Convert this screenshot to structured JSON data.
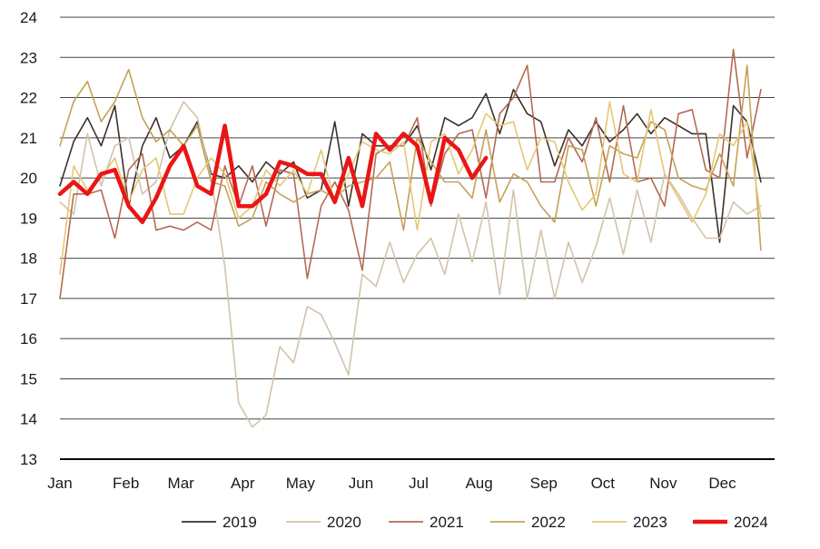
{
  "chart_data": {
    "type": "line",
    "title": "",
    "xlabel": "",
    "ylabel": "",
    "ylim": [
      13,
      24
    ],
    "yticks": [
      13,
      14,
      15,
      16,
      17,
      18,
      19,
      20,
      21,
      22,
      23,
      24
    ],
    "xlim": [
      1,
      53
    ],
    "x_ticks": [
      {
        "label": "Jan",
        "week": 1
      },
      {
        "label": "Feb",
        "week": 5.8
      },
      {
        "label": "Mar",
        "week": 9.8
      },
      {
        "label": "Apr",
        "week": 14.3
      },
      {
        "label": "May",
        "week": 18.5
      },
      {
        "label": "Jun",
        "week": 22.9
      },
      {
        "label": "Jul",
        "week": 27.1
      },
      {
        "label": "Aug",
        "week": 31.5
      },
      {
        "label": "Sep",
        "week": 36.2
      },
      {
        "label": "Oct",
        "week": 40.5
      },
      {
        "label": "Nov",
        "week": 44.9
      },
      {
        "label": "Dec",
        "week": 49.2
      }
    ],
    "grid": true,
    "legend_position": "bottom-right",
    "series": [
      {
        "name": "2019",
        "color": "#3d3129",
        "width": 1.6,
        "values": [
          19.8,
          20.9,
          21.5,
          20.8,
          21.8,
          19.3,
          20.8,
          21.5,
          20.5,
          20.8,
          21.4,
          20.1,
          20.0,
          20.3,
          19.9,
          20.4,
          20.1,
          20.4,
          19.5,
          19.7,
          21.4,
          19.3,
          21.1,
          20.8,
          20.8,
          20.8,
          21.3,
          20.2,
          21.5,
          21.3,
          21.5,
          22.1,
          21.1,
          22.2,
          21.6,
          21.4,
          20.3,
          21.2,
          20.8,
          21.4,
          20.9,
          21.2,
          21.6,
          21.1,
          21.5,
          21.3,
          21.1,
          21.1,
          18.4,
          21.8,
          21.4,
          19.9
        ]
      },
      {
        "name": "2020",
        "color": "#d2c3aa",
        "width": 1.6,
        "values": [
          19.4,
          19.1,
          21.1,
          19.8,
          20.8,
          21.0,
          19.6,
          19.9,
          21.2,
          21.9,
          21.5,
          20.0,
          17.8,
          14.4,
          13.8,
          14.1,
          15.8,
          15.4,
          16.8,
          16.6,
          15.9,
          15.1,
          17.6,
          17.3,
          18.4,
          17.4,
          18.1,
          18.5,
          17.6,
          19.1,
          17.9,
          19.4,
          17.1,
          19.7,
          17.0,
          18.7,
          17.0,
          18.4,
          17.4,
          18.3,
          19.5,
          18.1,
          19.7,
          18.4,
          20.1,
          19.6,
          19.0,
          18.5,
          18.5,
          19.4,
          19.1,
          19.3
        ]
      },
      {
        "name": "2021",
        "color": "#b56a53",
        "width": 1.6,
        "values": [
          17.0,
          19.6,
          19.6,
          19.7,
          18.5,
          20.2,
          20.6,
          18.7,
          18.8,
          18.7,
          18.9,
          18.7,
          20.3,
          19.3,
          20.3,
          18.8,
          20.2,
          20.1,
          17.5,
          19.3,
          19.9,
          19.2,
          17.7,
          20.6,
          20.8,
          20.8,
          21.5,
          19.3,
          20.6,
          21.1,
          21.2,
          19.5,
          21.6,
          22.0,
          22.8,
          19.9,
          19.9,
          21.0,
          20.4,
          21.5,
          19.9,
          21.8,
          19.9,
          20.0,
          19.3,
          21.6,
          21.7,
          20.2,
          20.0,
          23.2,
          20.5,
          22.2
        ]
      },
      {
        "name": "2022",
        "color": "#c4a257",
        "width": 1.6,
        "values": [
          20.8,
          21.9,
          22.4,
          21.4,
          21.9,
          22.7,
          21.5,
          20.9,
          21.2,
          20.8,
          21.3,
          19.9,
          19.8,
          18.8,
          19.0,
          19.9,
          19.6,
          19.4,
          19.6,
          19.7,
          19.5,
          19.8,
          19.9,
          20.0,
          20.4,
          18.7,
          21.0,
          20.4,
          19.9,
          19.9,
          19.5,
          21.2,
          19.4,
          20.1,
          19.9,
          19.3,
          18.9,
          20.8,
          20.7,
          19.3,
          20.8,
          20.6,
          20.5,
          21.4,
          21.2,
          20.0,
          19.8,
          19.7,
          20.6,
          19.8,
          22.8,
          18.2
        ]
      },
      {
        "name": "2023",
        "color": "#e5c775",
        "width": 1.6,
        "values": [
          17.6,
          20.3,
          19.7,
          20.0,
          20.5,
          19.4,
          20.2,
          20.5,
          19.1,
          19.1,
          20.0,
          20.5,
          20.1,
          19.0,
          19.3,
          20.2,
          19.8,
          20.2,
          19.6,
          20.7,
          19.4,
          20.1,
          20.9,
          20.7,
          20.6,
          20.9,
          18.7,
          20.9,
          21.1,
          20.1,
          20.7,
          21.6,
          21.3,
          21.4,
          20.2,
          21.0,
          20.9,
          19.9,
          19.2,
          19.6,
          21.9,
          20.1,
          19.9,
          21.7,
          20.1,
          19.5,
          18.9,
          19.6,
          21.1,
          20.8,
          21.4,
          19.0
        ]
      },
      {
        "name": "2024",
        "color": "#ea1515",
        "width": 4.5,
        "values": [
          19.6,
          19.9,
          19.6,
          20.1,
          20.2,
          19.3,
          18.9,
          19.5,
          20.3,
          20.8,
          19.8,
          19.6,
          21.3,
          19.3,
          19.3,
          19.6,
          20.4,
          20.3,
          20.1,
          20.1,
          19.4,
          20.5,
          19.3,
          21.1,
          20.7,
          21.1,
          20.8,
          19.4,
          21.0,
          20.7,
          20.0,
          20.5
        ]
      }
    ]
  }
}
